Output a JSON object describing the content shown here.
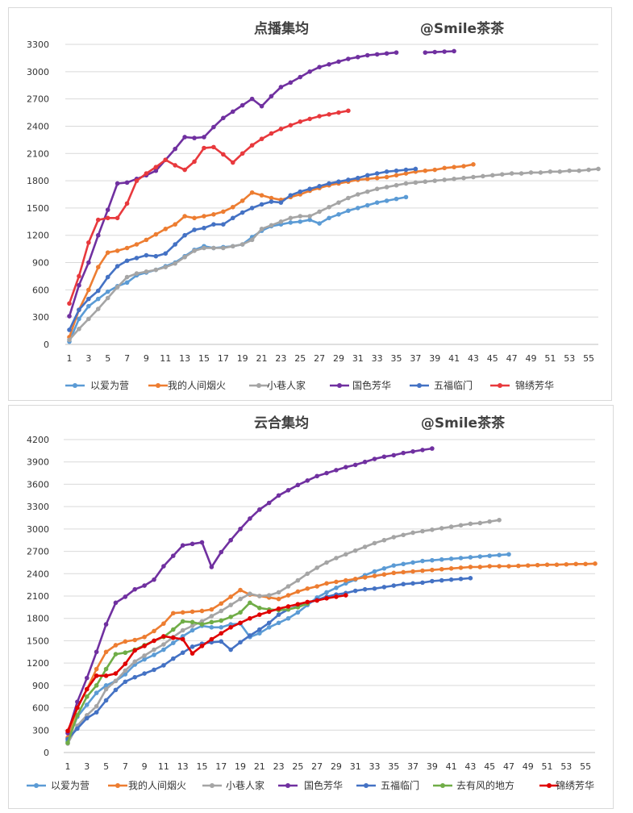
{
  "charts": [
    {
      "type": "line",
      "title": "点播集均",
      "watermark": "@Smile茶茶",
      "ylim": [
        0,
        3300
      ],
      "yticks": [
        0,
        300,
        600,
        900,
        1200,
        1500,
        1800,
        2100,
        2400,
        2700,
        3000,
        3300
      ],
      "xlim": [
        1,
        56
      ],
      "xticks": [
        1,
        3,
        5,
        7,
        9,
        11,
        13,
        15,
        17,
        19,
        21,
        23,
        25,
        27,
        29,
        31,
        33,
        35,
        37,
        39,
        41,
        43,
        45,
        47,
        49,
        51,
        53,
        55
      ],
      "grid": true,
      "legend_position": "bottom",
      "series": [
        {
          "name": "以爱为营",
          "color": "#5b9bd5",
          "start": 1,
          "values": [
            30,
            280,
            420,
            500,
            580,
            640,
            680,
            760,
            790,
            820,
            860,
            900,
            970,
            1040,
            1080,
            1060,
            1070,
            1080,
            1100,
            1180,
            1250,
            1300,
            1320,
            1340,
            1350,
            1370,
            1330,
            1390,
            1430,
            1470,
            1500,
            1530,
            1560,
            1580,
            1600,
            1620
          ]
        },
        {
          "name": "我的人间烟火",
          "color": "#ed7d31",
          "start": 1,
          "values": [
            80,
            380,
            600,
            850,
            1010,
            1030,
            1060,
            1100,
            1150,
            1210,
            1270,
            1320,
            1410,
            1390,
            1410,
            1430,
            1460,
            1510,
            1580,
            1670,
            1640,
            1610,
            1590,
            1620,
            1650,
            1690,
            1720,
            1750,
            1770,
            1790,
            1810,
            1820,
            1830,
            1840,
            1860,
            1880,
            1900,
            1910,
            1920,
            1940,
            1950,
            1960,
            1980
          ]
        },
        {
          "name": "小巷人家",
          "color": "#a5a5a5",
          "start": 1,
          "values": [
            50,
            170,
            280,
            390,
            510,
            630,
            740,
            780,
            800,
            820,
            850,
            890,
            960,
            1030,
            1060,
            1060,
            1060,
            1080,
            1100,
            1150,
            1270,
            1310,
            1350,
            1390,
            1410,
            1410,
            1460,
            1510,
            1560,
            1610,
            1650,
            1680,
            1710,
            1730,
            1750,
            1770,
            1780,
            1790,
            1800,
            1810,
            1820,
            1830,
            1840,
            1850,
            1860,
            1870,
            1880,
            1880,
            1890,
            1890,
            1900,
            1900,
            1910,
            1910,
            1920,
            1930
          ]
        },
        {
          "name": "国色芳华",
          "color": "#7030a0",
          "start": 1,
          "values": [
            310,
            650,
            900,
            1200,
            1480,
            1770,
            1780,
            1820,
            1860,
            1910,
            2030,
            2150,
            2280,
            2270,
            2280,
            2390,
            2490,
            2560,
            2630,
            2700,
            2620,
            2730,
            2830,
            2880,
            2940,
            3000,
            3050,
            3080,
            3110,
            3140,
            3160,
            3180,
            3190,
            3200,
            3210,
            null,
            null,
            3210,
            3215,
            3220,
            3225
          ]
        },
        {
          "name": "五福临门",
          "color": "#4472c4",
          "start": 1,
          "values": [
            160,
            380,
            500,
            590,
            740,
            860,
            920,
            950,
            980,
            970,
            1000,
            1100,
            1200,
            1260,
            1280,
            1320,
            1320,
            1390,
            1450,
            1500,
            1540,
            1570,
            1560,
            1640,
            1680,
            1710,
            1740,
            1770,
            1790,
            1810,
            1830,
            1860,
            1880,
            1900,
            1910,
            1920,
            1930
          ]
        },
        {
          "name": "锦绣芳华",
          "color": "#e8393d",
          "start": 1,
          "values": [
            450,
            750,
            1120,
            1370,
            1390,
            1390,
            1550,
            1800,
            1880,
            1950,
            2030,
            1970,
            1920,
            2010,
            2160,
            2170,
            2090,
            2000,
            2100,
            2190,
            2260,
            2320,
            2370,
            2410,
            2450,
            2480,
            2510,
            2530,
            2550,
            2570
          ]
        }
      ]
    },
    {
      "type": "line",
      "title": "云合集均",
      "watermark": "@Smile茶茶",
      "ylim": [
        0,
        4200
      ],
      "yticks": [
        0,
        300,
        600,
        900,
        1200,
        1500,
        1800,
        2100,
        2400,
        2700,
        3000,
        3300,
        3600,
        3900,
        4200
      ],
      "xlim": [
        1,
        56
      ],
      "xticks": [
        1,
        3,
        5,
        7,
        9,
        11,
        13,
        15,
        17,
        19,
        21,
        23,
        25,
        27,
        29,
        31,
        33,
        35,
        37,
        39,
        41,
        43,
        45,
        47,
        49,
        51,
        53,
        55
      ],
      "grid": true,
      "legend_position": "bottom",
      "series": [
        {
          "name": "以爱为营",
          "color": "#5b9bd5",
          "start": 1,
          "values": [
            150,
            480,
            640,
            800,
            900,
            960,
            1050,
            1180,
            1250,
            1310,
            1380,
            1470,
            1560,
            1640,
            1700,
            1680,
            1680,
            1720,
            1730,
            1550,
            1600,
            1680,
            1740,
            1800,
            1880,
            1980,
            2080,
            2150,
            2210,
            2270,
            2320,
            2380,
            2430,
            2470,
            2510,
            2530,
            2550,
            2570,
            2580,
            2590,
            2600,
            2610,
            2620,
            2630,
            2640,
            2650,
            2660
          ]
        },
        {
          "name": "我的人间烟火",
          "color": "#ed7d31",
          "start": 1,
          "values": [
            200,
            600,
            850,
            1120,
            1350,
            1440,
            1490,
            1510,
            1550,
            1630,
            1730,
            1870,
            1880,
            1890,
            1900,
            1920,
            2000,
            2090,
            2180,
            2120,
            2100,
            2080,
            2060,
            2110,
            2160,
            2200,
            2230,
            2270,
            2290,
            2310,
            2330,
            2350,
            2370,
            2390,
            2410,
            2420,
            2430,
            2440,
            2450,
            2460,
            2470,
            2480,
            2490,
            2490,
            2500,
            2500,
            2500,
            2505,
            2510,
            2515,
            2520,
            2520,
            2525,
            2530,
            2530,
            2535
          ]
        },
        {
          "name": "小巷人家",
          "color": "#a5a5a5",
          "start": 1,
          "values": [
            120,
            360,
            500,
            620,
            850,
            960,
            1100,
            1220,
            1300,
            1380,
            1450,
            1550,
            1640,
            1700,
            1760,
            1830,
            1900,
            1980,
            2060,
            2130,
            2100,
            2110,
            2150,
            2230,
            2310,
            2400,
            2480,
            2550,
            2610,
            2660,
            2710,
            2760,
            2810,
            2850,
            2890,
            2920,
            2950,
            2970,
            2990,
            3010,
            3030,
            3050,
            3070,
            3080,
            3100,
            3120
          ]
        },
        {
          "name": "国色芳华",
          "color": "#7030a0",
          "start": 1,
          "values": [
            260,
            680,
            1000,
            1350,
            1720,
            2010,
            2090,
            2190,
            2240,
            2320,
            2500,
            2640,
            2780,
            2800,
            2820,
            2490,
            2690,
            2850,
            3000,
            3140,
            3260,
            3350,
            3450,
            3520,
            3590,
            3650,
            3710,
            3750,
            3790,
            3830,
            3860,
            3900,
            3940,
            3970,
            3990,
            4020,
            4040,
            4060,
            4080
          ]
        },
        {
          "name": "五福临门",
          "color": "#4472c4",
          "start": 1,
          "values": [
            180,
            320,
            460,
            540,
            700,
            840,
            950,
            1010,
            1060,
            1110,
            1170,
            1260,
            1340,
            1420,
            1460,
            1480,
            1490,
            1380,
            1480,
            1570,
            1650,
            1740,
            1850,
            1920,
            1960,
            2000,
            2050,
            2090,
            2120,
            2140,
            2170,
            2190,
            2200,
            2220,
            2240,
            2260,
            2270,
            2280,
            2300,
            2310,
            2320,
            2330,
            2340
          ]
        },
        {
          "name": "去有风的地方",
          "color": "#70ad47",
          "start": 1,
          "values": [
            130,
            500,
            750,
            900,
            1120,
            1320,
            1340,
            1380,
            1440,
            1500,
            1550,
            1650,
            1760,
            1750,
            1720,
            1750,
            1770,
            1820,
            1880,
            2010,
            1940,
            1920,
            1910,
            1920,
            1950,
            2000
          ]
        },
        {
          "name": "锦绣芳华",
          "color": "#e00000",
          "start": 1,
          "values": [
            290,
            600,
            850,
            1030,
            1030,
            1060,
            1190,
            1370,
            1430,
            1500,
            1560,
            1540,
            1520,
            1330,
            1430,
            1520,
            1600,
            1680,
            1740,
            1800,
            1850,
            1890,
            1930,
            1960,
            1990,
            2020,
            2040,
            2070,
            2090,
            2110
          ]
        }
      ]
    }
  ]
}
